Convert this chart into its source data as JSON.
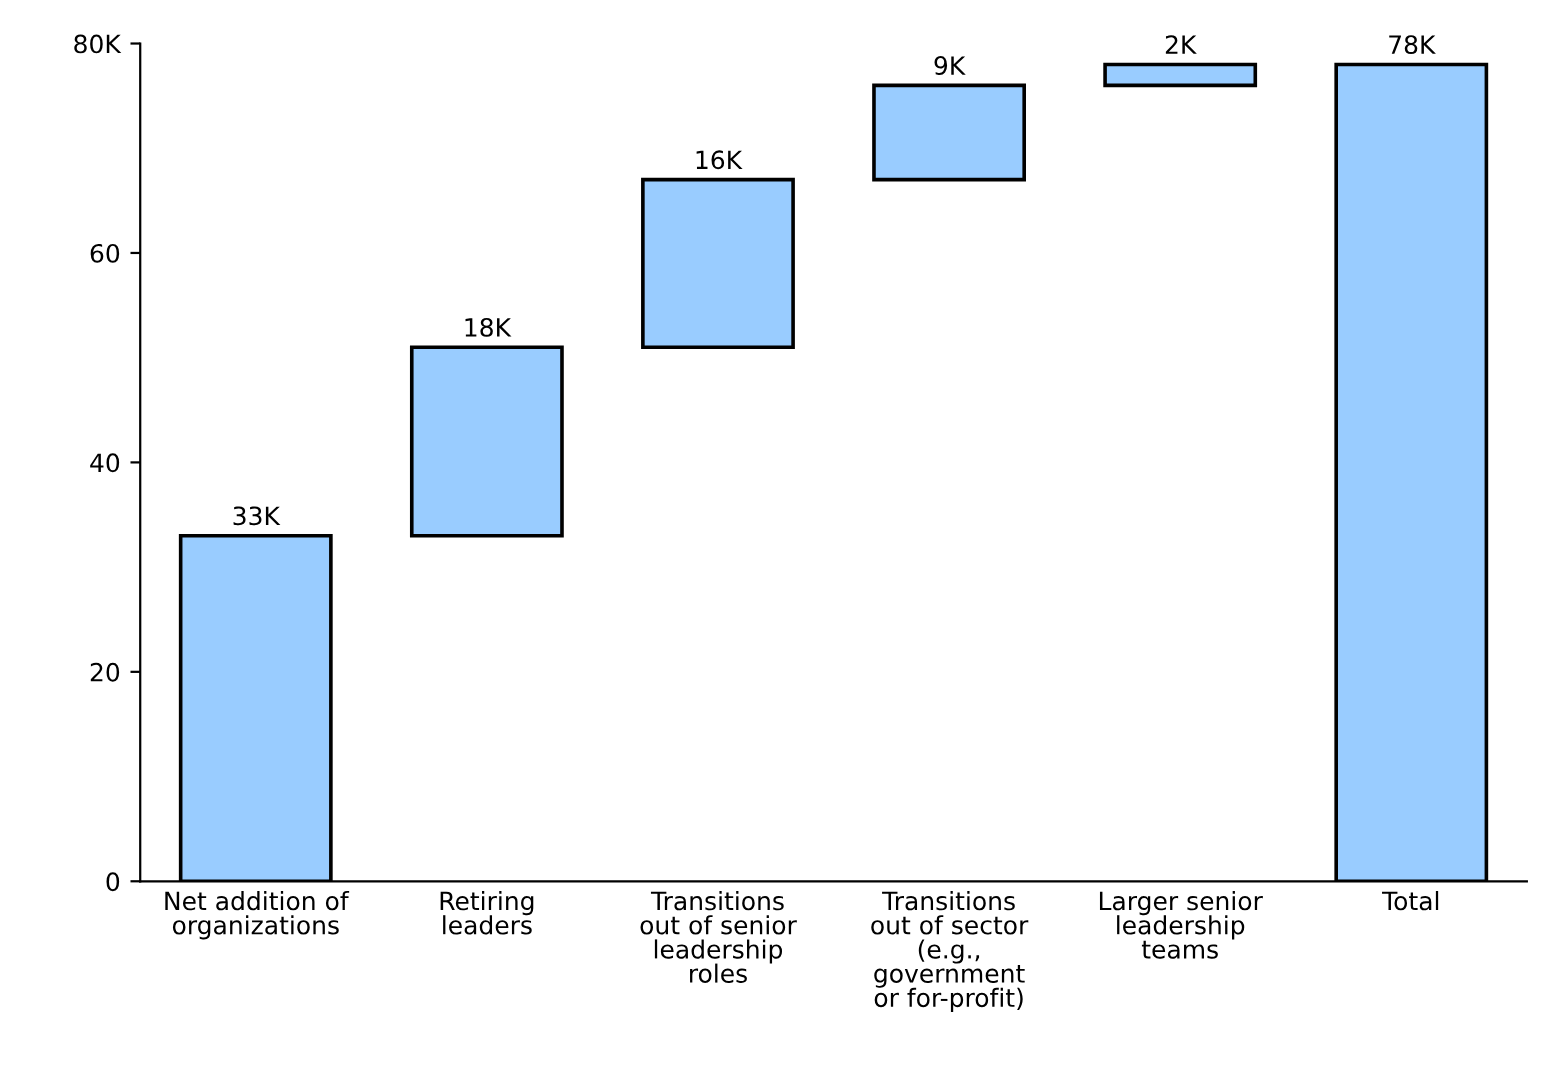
{
  "chart_data": {
    "type": "bar",
    "categories": [
      "Net addition of\norganizations",
      "Retiring\nleaders",
      "Transitions\nout of senior\nleadership\nroles",
      "Transitions\nout of sector\n(e.g.,\ngovernment\nor for-profit)",
      "Larger senior\nleadership\nteams",
      "Total"
    ],
    "values": [
      33,
      18,
      16,
      9,
      2,
      78
    ],
    "base": [
      0,
      33,
      51,
      67,
      76,
      0
    ],
    "value_labels": [
      "33K",
      "18K",
      "16K",
      "9K",
      "2K",
      "78K"
    ],
    "color": "#99ccff",
    "ylim": [
      0,
      80
    ],
    "yticks": [
      0,
      20,
      40,
      60,
      {
        "value": 80,
        "label": "80K"
      }
    ],
    "grid": false
  }
}
